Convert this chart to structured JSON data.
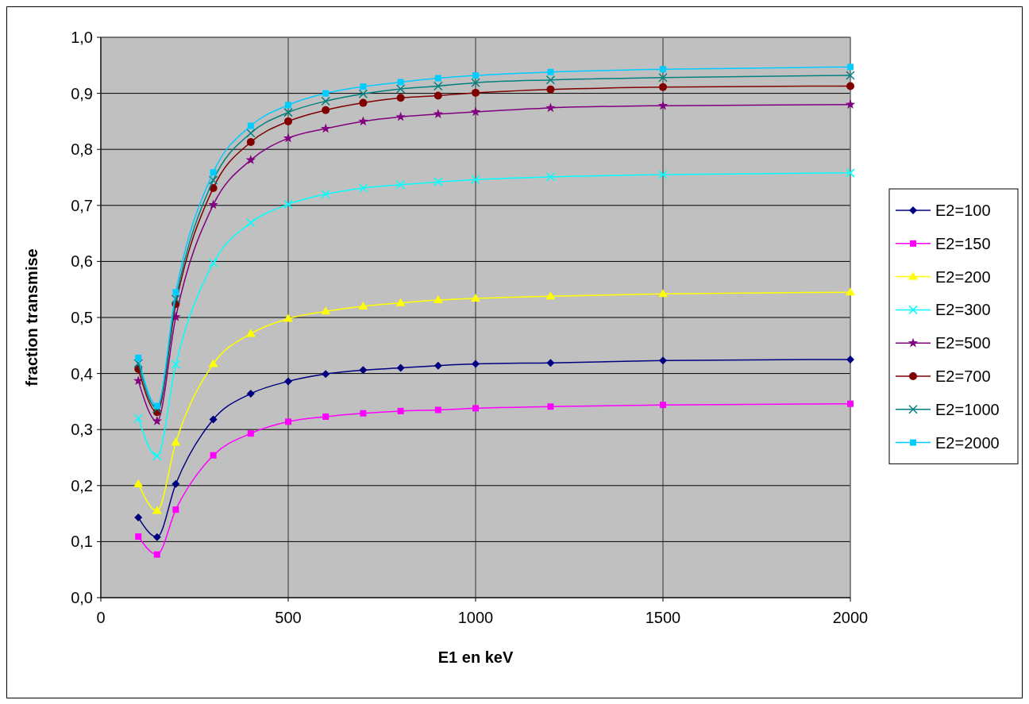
{
  "chart_data": {
    "type": "line",
    "xlabel": "E1 en keV",
    "ylabel": "fraction transmise",
    "x": [
      100,
      150,
      200,
      300,
      400,
      500,
      600,
      700,
      800,
      900,
      1000,
      1200,
      1500,
      2000
    ],
    "xlim": [
      0,
      2000
    ],
    "xticks": [
      0,
      500,
      1000,
      1500,
      2000
    ],
    "ylim": [
      0,
      1
    ],
    "yticks": [
      {
        "value": 0,
        "label": "0,0"
      },
      {
        "value": 0.1,
        "label": "0,1"
      },
      {
        "value": 0.2,
        "label": "0,2"
      },
      {
        "value": 0.3,
        "label": "0,3"
      },
      {
        "value": 0.4,
        "label": "0,4"
      },
      {
        "value": 0.5,
        "label": "0,5"
      },
      {
        "value": 0.6,
        "label": "0,6"
      },
      {
        "value": 0.7,
        "label": "0,7"
      },
      {
        "value": 0.8,
        "label": "0,8"
      },
      {
        "value": 0.9,
        "label": "0,9"
      },
      {
        "value": 1,
        "label": "1,0"
      }
    ],
    "grid": true,
    "legend": "right",
    "line_style": "solid",
    "series": [
      {
        "name": "E2=100",
        "color": "#000080",
        "marker": "diamond",
        "values": [
          0.143,
          0.108,
          0.203,
          0.318,
          0.364,
          0.386,
          0.399,
          0.406,
          0.41,
          0.414,
          0.417,
          0.419,
          0.423,
          0.425
        ]
      },
      {
        "name": "E2=150",
        "color": "#ff00ff",
        "marker": "square",
        "values": [
          0.109,
          0.077,
          0.157,
          0.254,
          0.293,
          0.314,
          0.323,
          0.329,
          0.333,
          0.335,
          0.338,
          0.341,
          0.344,
          0.346
        ]
      },
      {
        "name": "E2=200",
        "color": "#ffff00",
        "marker": "triangle",
        "values": [
          0.203,
          0.155,
          0.277,
          0.417,
          0.471,
          0.498,
          0.511,
          0.52,
          0.526,
          0.531,
          0.534,
          0.538,
          0.542,
          0.545
        ]
      },
      {
        "name": "E2=300",
        "color": "#00ffff",
        "marker": "cross",
        "values": [
          0.32,
          0.253,
          0.416,
          0.597,
          0.669,
          0.702,
          0.72,
          0.731,
          0.737,
          0.742,
          0.746,
          0.751,
          0.755,
          0.758
        ]
      },
      {
        "name": "E2=500",
        "color": "#800080",
        "marker": "star",
        "values": [
          0.387,
          0.315,
          0.501,
          0.701,
          0.781,
          0.82,
          0.837,
          0.85,
          0.858,
          0.863,
          0.867,
          0.874,
          0.878,
          0.88
        ]
      },
      {
        "name": "E2=700",
        "color": "#800000",
        "marker": "circle",
        "values": [
          0.408,
          0.331,
          0.524,
          0.731,
          0.813,
          0.85,
          0.87,
          0.883,
          0.892,
          0.896,
          0.901,
          0.907,
          0.911,
          0.913
        ]
      },
      {
        "name": "E2=1000",
        "color": "#008080",
        "marker": "cross",
        "values": [
          0.418,
          0.337,
          0.533,
          0.745,
          0.829,
          0.866,
          0.886,
          0.899,
          0.908,
          0.913,
          0.919,
          0.924,
          0.928,
          0.932
        ]
      },
      {
        "name": "E2=2000",
        "color": "#00ccff",
        "marker": "square",
        "values": [
          0.428,
          0.342,
          0.545,
          0.759,
          0.842,
          0.879,
          0.9,
          0.912,
          0.92,
          0.927,
          0.932,
          0.938,
          0.943,
          0.947
        ]
      }
    ]
  }
}
